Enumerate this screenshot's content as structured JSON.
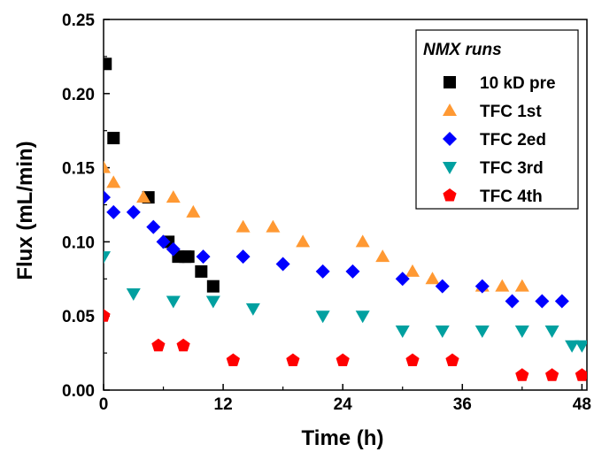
{
  "chart_data": {
    "type": "scatter",
    "xlabel": "Time (h)",
    "ylabel": "Flux (mL/min)",
    "xlim": [
      0,
      48.5
    ],
    "ylim": [
      0,
      0.25
    ],
    "xticks": [
      "0",
      "12",
      "24",
      "36",
      "48"
    ],
    "yticks": [
      "0.00",
      "0.05",
      "0.10",
      "0.15",
      "0.20",
      "0.25"
    ],
    "legend_title": "NMX runs",
    "legend_position": "top-right",
    "grid": false,
    "series": [
      {
        "name": "10 kD pre",
        "marker": "square",
        "color": "#000000",
        "points": [
          [
            0.2,
            0.22
          ],
          [
            1,
            0.17
          ],
          [
            4.5,
            0.13
          ],
          [
            6.5,
            0.1
          ],
          [
            7.5,
            0.09
          ],
          [
            8.2,
            0.09
          ],
          [
            8.5,
            0.09
          ],
          [
            9.8,
            0.08
          ],
          [
            11,
            0.07
          ]
        ]
      },
      {
        "name": "TFC 1st",
        "marker": "triangle-up",
        "color": "#ff9933",
        "points": [
          [
            0,
            0.15
          ],
          [
            1,
            0.14
          ],
          [
            4,
            0.13
          ],
          [
            7,
            0.13
          ],
          [
            9,
            0.12
          ],
          [
            14,
            0.11
          ],
          [
            17,
            0.11
          ],
          [
            20,
            0.1
          ],
          [
            26,
            0.1
          ],
          [
            28,
            0.09
          ],
          [
            31,
            0.08
          ],
          [
            33,
            0.075
          ],
          [
            38,
            0.07
          ],
          [
            40,
            0.07
          ],
          [
            42,
            0.07
          ]
        ]
      },
      {
        "name": "TFC 2ed",
        "marker": "diamond",
        "color": "#0000ff",
        "points": [
          [
            0,
            0.13
          ],
          [
            1,
            0.12
          ],
          [
            3,
            0.12
          ],
          [
            5,
            0.11
          ],
          [
            6,
            0.1
          ],
          [
            7,
            0.095
          ],
          [
            10,
            0.09
          ],
          [
            14,
            0.09
          ],
          [
            18,
            0.085
          ],
          [
            22,
            0.08
          ],
          [
            25,
            0.08
          ],
          [
            30,
            0.075
          ],
          [
            34,
            0.07
          ],
          [
            38,
            0.07
          ],
          [
            41,
            0.06
          ],
          [
            44,
            0.06
          ],
          [
            46,
            0.06
          ]
        ]
      },
      {
        "name": "TFC 3rd",
        "marker": "triangle-down",
        "color": "#00a0a0",
        "points": [
          [
            0,
            0.09
          ],
          [
            3,
            0.065
          ],
          [
            7,
            0.06
          ],
          [
            11,
            0.06
          ],
          [
            15,
            0.055
          ],
          [
            22,
            0.05
          ],
          [
            26,
            0.05
          ],
          [
            30,
            0.04
          ],
          [
            34,
            0.04
          ],
          [
            38,
            0.04
          ],
          [
            42,
            0.04
          ],
          [
            45,
            0.04
          ],
          [
            47,
            0.03
          ],
          [
            48,
            0.03
          ]
        ]
      },
      {
        "name": "TFC 4th",
        "marker": "pentagon",
        "color": "#ff0000",
        "points": [
          [
            0,
            0.05
          ],
          [
            5.5,
            0.03
          ],
          [
            8,
            0.03
          ],
          [
            13,
            0.02
          ],
          [
            19,
            0.02
          ],
          [
            24,
            0.02
          ],
          [
            31,
            0.02
          ],
          [
            35,
            0.02
          ],
          [
            42,
            0.01
          ],
          [
            45,
            0.01
          ],
          [
            48,
            0.01
          ]
        ]
      }
    ]
  }
}
